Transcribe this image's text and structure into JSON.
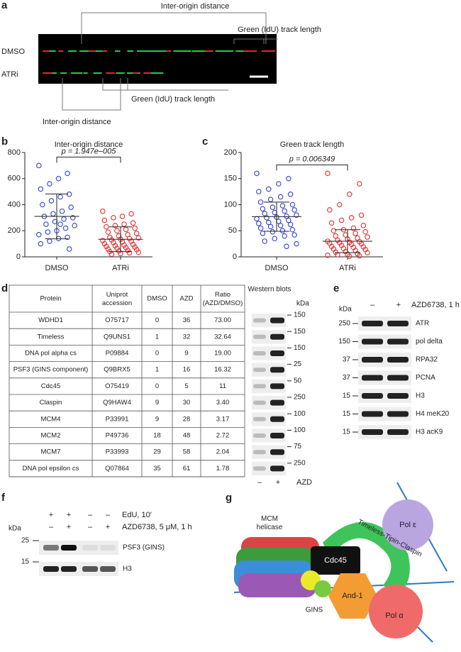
{
  "panel_a": {
    "label": "a",
    "rows": [
      "DMSO",
      "ATRi"
    ],
    "annotations": [
      "Inter-origin distance",
      "Green (IdU) track length",
      "Green (IdU) track length",
      "Inter-origin distance"
    ]
  },
  "chart_data": [
    {
      "type": "scatter",
      "label": "b",
      "title": "Inter-origin distance",
      "annotation": "p = 1.947e–005",
      "categories": [
        "DMSO",
        "ATRi"
      ],
      "ylim": [
        0,
        800
      ],
      "yticks": [
        0,
        200,
        400,
        600,
        800
      ],
      "series": [
        {
          "name": "DMSO",
          "color": "#3344cc",
          "mean": 310,
          "sd": 172,
          "values": [
            700,
            640,
            600,
            560,
            520,
            480,
            460,
            430,
            400,
            380,
            350,
            330,
            310,
            300,
            290,
            270,
            250,
            240,
            220,
            200,
            190,
            170,
            150,
            140,
            120,
            100,
            60,
            250
          ]
        },
        {
          "name": "ATRi",
          "color": "#dd3333",
          "mean": 135,
          "sd": 95,
          "values": [
            350,
            330,
            310,
            300,
            280,
            260,
            250,
            240,
            230,
            220,
            210,
            200,
            190,
            180,
            170,
            160,
            150,
            145,
            140,
            135,
            130,
            125,
            120,
            115,
            110,
            100,
            95,
            90,
            85,
            80,
            75,
            70,
            65,
            60,
            55,
            50,
            45,
            40,
            35,
            30,
            25,
            20
          ]
        }
      ]
    },
    {
      "type": "scatter",
      "label": "c",
      "title": "Green track length",
      "annotation": "p = 0.006349",
      "categories": [
        "DMSO",
        "ATRi"
      ],
      "ylim": [
        0,
        200
      ],
      "yticks": [
        0,
        50,
        100,
        150,
        200
      ],
      "series": [
        {
          "name": "DMSO",
          "color": "#3344cc",
          "mean": 77,
          "sd": 28,
          "values": [
            160,
            150,
            140,
            130,
            125,
            120,
            115,
            110,
            105,
            100,
            98,
            95,
            92,
            90,
            88,
            85,
            83,
            80,
            78,
            76,
            75,
            73,
            70,
            68,
            66,
            64,
            62,
            60,
            58,
            55,
            52,
            50,
            48,
            45,
            42,
            40,
            35,
            30,
            25,
            20
          ]
        },
        {
          "name": "ATRi",
          "color": "#dd3333",
          "mean": 30,
          "sd": 22,
          "values": [
            160,
            140,
            120,
            100,
            90,
            80,
            75,
            70,
            65,
            60,
            55,
            52,
            50,
            48,
            45,
            42,
            40,
            38,
            36,
            34,
            32,
            30,
            29,
            28,
            27,
            26,
            25,
            24,
            22,
            20,
            19,
            18,
            16,
            15,
            14,
            12,
            10,
            9,
            8,
            6,
            5,
            4,
            3,
            2,
            1
          ]
        }
      ]
    }
  ],
  "panel_d": {
    "label": "d",
    "header": [
      "Protein",
      "Uniprot accession",
      "DMSO",
      "AZD",
      "Ratio (AZD/DMSO)"
    ],
    "rows": [
      [
        "WDHD1",
        "O75717",
        "0",
        "36",
        "73.00"
      ],
      [
        "Timeless",
        "Q9UNS1",
        "1",
        "32",
        "32.64"
      ],
      [
        "DNA pol alpha cs",
        "P09884",
        "0",
        "9",
        "19.00"
      ],
      [
        "PSF3 (GINS component)",
        "Q9BRX5",
        "1",
        "16",
        "16.32"
      ],
      [
        "Cdc45",
        "O75419",
        "0",
        "5",
        "11"
      ],
      [
        "Claspin",
        "Q9HAW4",
        "9",
        "30",
        "3.40"
      ],
      [
        "MCM4",
        "P33991",
        "9",
        "28",
        "3.17"
      ],
      [
        "MCM2",
        "P49736",
        "18",
        "48",
        "2.72"
      ],
      [
        "MCM7",
        "P33993",
        "29",
        "58",
        "2.04"
      ],
      [
        "DNA pol epsilon cs",
        "Q07864",
        "35",
        "61",
        "1.78"
      ]
    ],
    "blots_title": "Western blots",
    "kda": "kDa",
    "markers": [
      "150",
      "150",
      "150",
      "25",
      "50",
      "250",
      "100",
      "100",
      "75",
      "250"
    ],
    "lanes": [
      "–",
      "+"
    ],
    "treatment": "AZD"
  },
  "panel_e": {
    "label": "e",
    "kda": "kDa",
    "lanes": [
      "–",
      "+"
    ],
    "treatment": "AZD6738, 1 h",
    "rows": [
      [
        "250",
        "ATR"
      ],
      [
        "150",
        "pol delta"
      ],
      [
        "37",
        "RPA32"
      ],
      [
        "37",
        "PCNA"
      ],
      [
        "15",
        "H3"
      ],
      [
        "15",
        "H4 meK20"
      ],
      [
        "15",
        "H3 acK9"
      ]
    ]
  },
  "panel_f": {
    "label": "f",
    "kda": "kDa",
    "conditions": [
      {
        "name": "EdU, 10′",
        "signs": [
          "+",
          "+",
          "–",
          "–"
        ]
      },
      {
        "name": "AZD6738, 5 μM, 1 h",
        "signs": [
          "–",
          "+",
          "–",
          "+"
        ]
      }
    ],
    "rows": [
      [
        "25",
        "PSF3 (GINS)"
      ],
      [
        "15",
        "H3"
      ]
    ]
  },
  "panel_g": {
    "label": "g",
    "parts": [
      "MCM helicase",
      "Cdc45",
      "Timeless-Tipin-Claspin",
      "Pol ε",
      "And-1",
      "GINS",
      "Pol α"
    ]
  }
}
